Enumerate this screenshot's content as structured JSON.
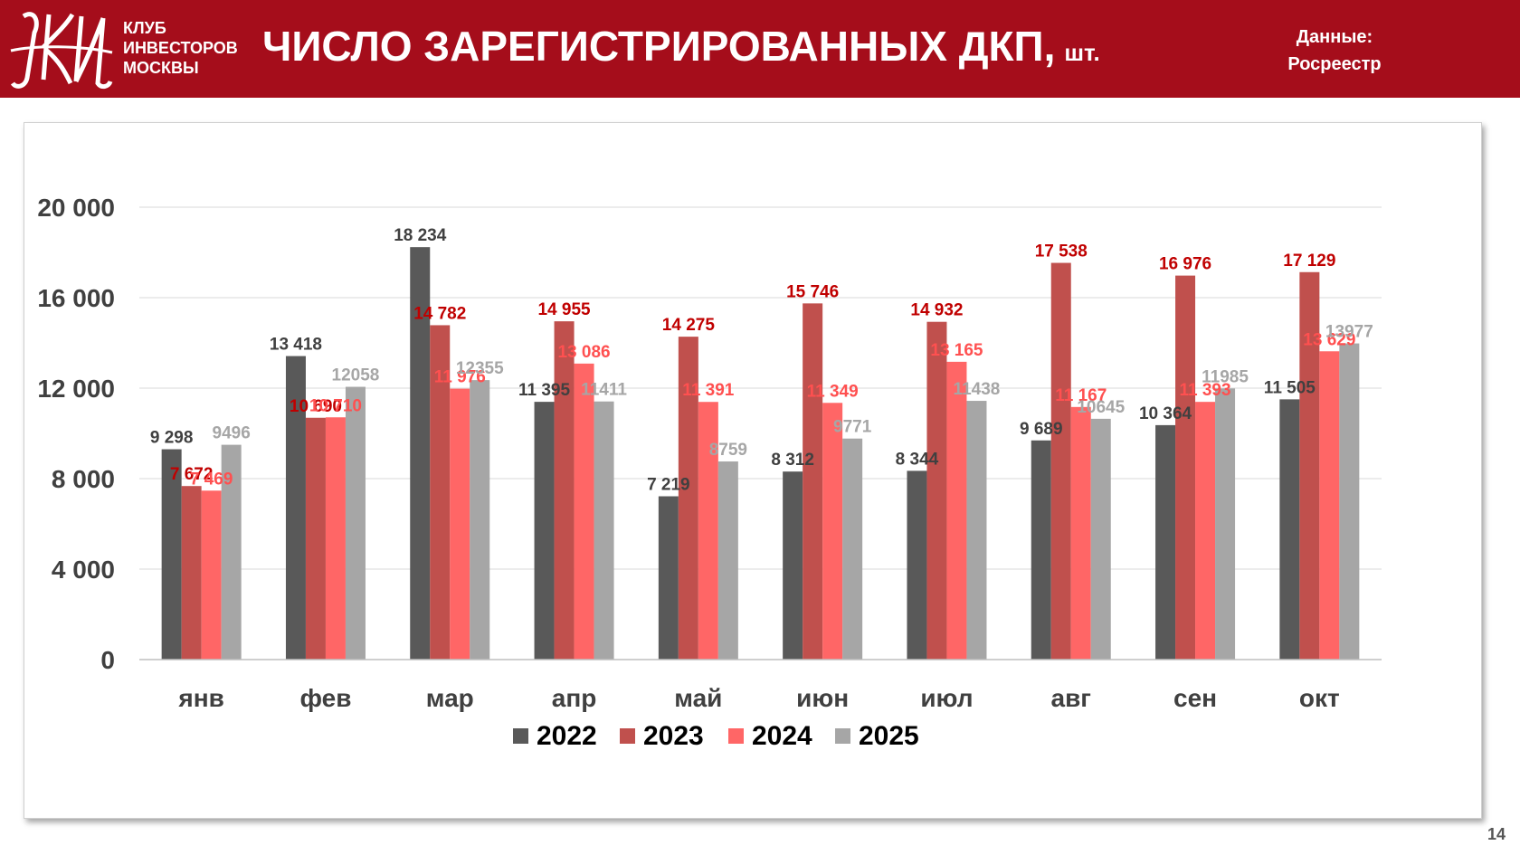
{
  "header": {
    "club_lines": [
      "КЛУБ",
      "ИНВЕСТОРОВ",
      "МОСКВЫ"
    ],
    "title": "ЧИСЛО ЗАРЕГИСТРИРОВАННЫХ ДКП,",
    "title_unit": "шт.",
    "source_lines": [
      "Данные:",
      "Росреестр"
    ],
    "logo_monogram": "КИМ"
  },
  "page_number": "14",
  "colors": {
    "header_bg": "#a50d1b",
    "series": [
      "#595959",
      "#c0504d",
      "#ff6666",
      "#a6a6a6"
    ],
    "label": [
      "#404040",
      "#c00000",
      "#ff5050",
      "#a6a6a6"
    ]
  },
  "chart_data": {
    "type": "bar",
    "title": "",
    "xlabel": "",
    "ylabel": "",
    "ylim": [
      0,
      20000
    ],
    "yticks": [
      0,
      4000,
      8000,
      12000,
      16000,
      20000
    ],
    "ytick_labels": [
      "0",
      "4 000",
      "8 000",
      "12 000",
      "16 000",
      "20 000"
    ],
    "grid": true,
    "legend_position": "bottom",
    "categories": [
      "янв",
      "фев",
      "мар",
      "апр",
      "май",
      "июн",
      "июл",
      "авг",
      "сен",
      "окт"
    ],
    "series": [
      {
        "name": "2022",
        "values": [
          9298,
          13418,
          18234,
          11395,
          7219,
          8312,
          8344,
          9689,
          10364,
          11505
        ],
        "labels": [
          "9 298",
          "13 418",
          "18 234",
          "11 395",
          "7 219",
          "8 312",
          "8 344",
          "9 689",
          "10 364",
          "11 505"
        ]
      },
      {
        "name": "2023",
        "values": [
          7672,
          10690,
          14782,
          14955,
          14275,
          15746,
          14932,
          17538,
          16976,
          17129
        ],
        "labels": [
          "7 672",
          "10 690",
          "14 782",
          "14 955",
          "14 275",
          "15 746",
          "14 932",
          "17 538",
          "16 976",
          "17 129"
        ]
      },
      {
        "name": "2024",
        "values": [
          7469,
          10710,
          11976,
          13086,
          11391,
          11349,
          13165,
          11167,
          11393,
          13629
        ],
        "labels": [
          "7 469",
          "10 710",
          "11 976",
          "13 086",
          "11 391",
          "11 349",
          "13 165",
          "11 167",
          "11 393",
          "13 629"
        ]
      },
      {
        "name": "2025",
        "values": [
          9496,
          12058,
          12355,
          11411,
          8759,
          9771,
          11438,
          10645,
          11985,
          13977
        ],
        "labels": [
          "9496",
          "12058",
          "12355",
          "11411",
          "8759",
          "9771",
          "11438",
          "10645",
          "11985",
          "13977"
        ]
      }
    ]
  }
}
